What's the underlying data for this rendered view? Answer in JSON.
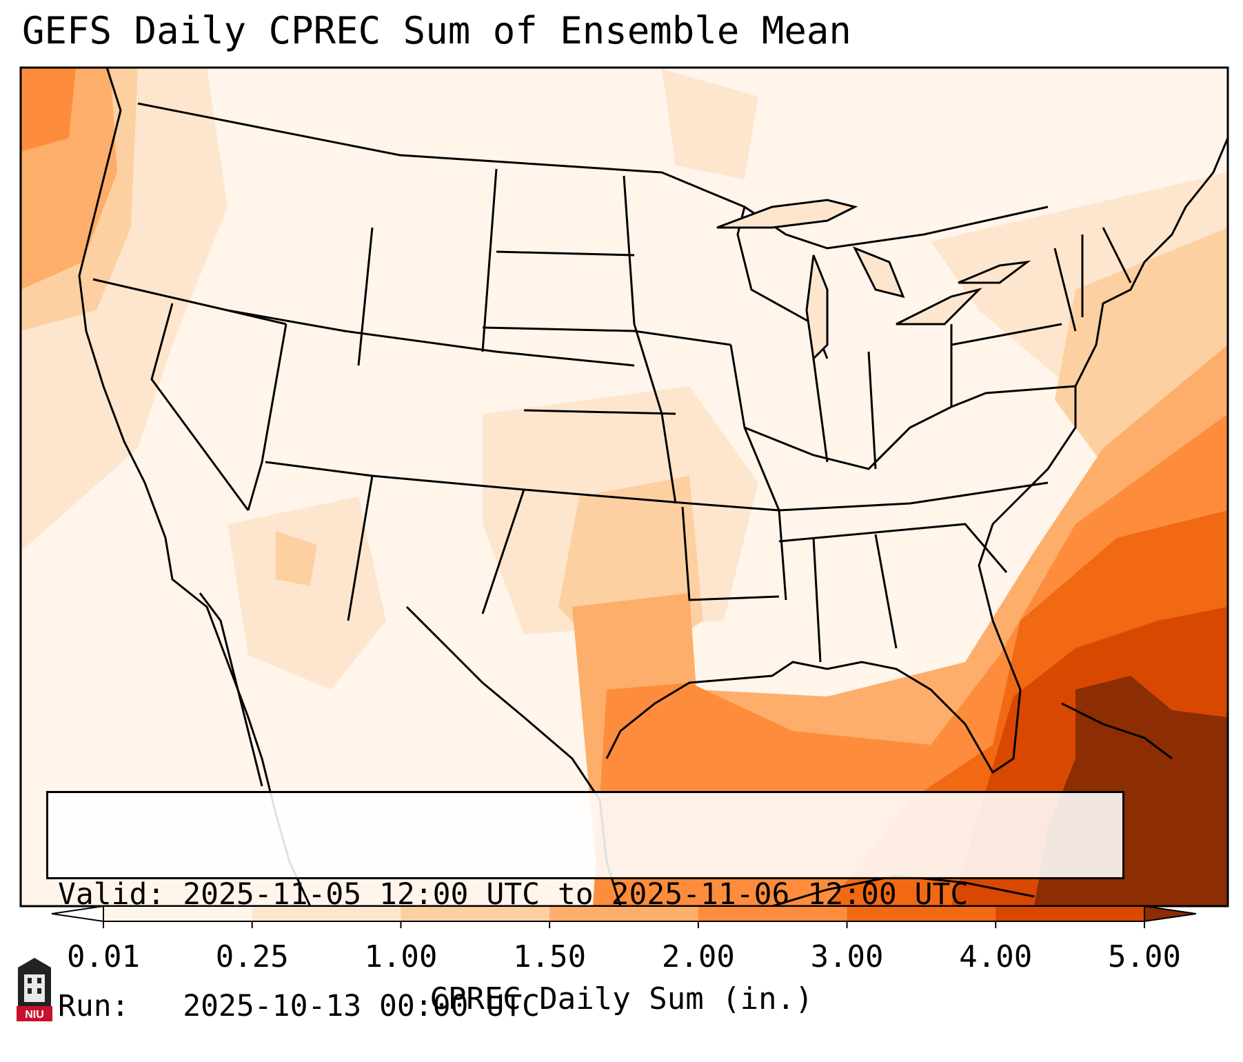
{
  "title": "GEFS Daily CPREC Sum of Ensemble Mean",
  "info": {
    "valid_label": "Valid:",
    "valid_value": "2025-11-05 12:00 UTC to 2025-11-06 12:00 UTC",
    "run_label": "Run:",
    "run_value": "2025-10-13 00:00 UTC"
  },
  "colorbar": {
    "label": "CPREC Daily Sum (in.)",
    "ticks": [
      "0.01",
      "0.25",
      "1.00",
      "1.50",
      "2.00",
      "3.00",
      "4.00",
      "5.00"
    ],
    "colors": [
      "#fff5eb",
      "#fee6ce",
      "#fdd0a2",
      "#fdae6b",
      "#fd8d3c",
      "#f16913",
      "#d94801",
      "#8c2d04"
    ]
  },
  "logo": {
    "text": "NIU",
    "color": "#c8102e"
  }
}
